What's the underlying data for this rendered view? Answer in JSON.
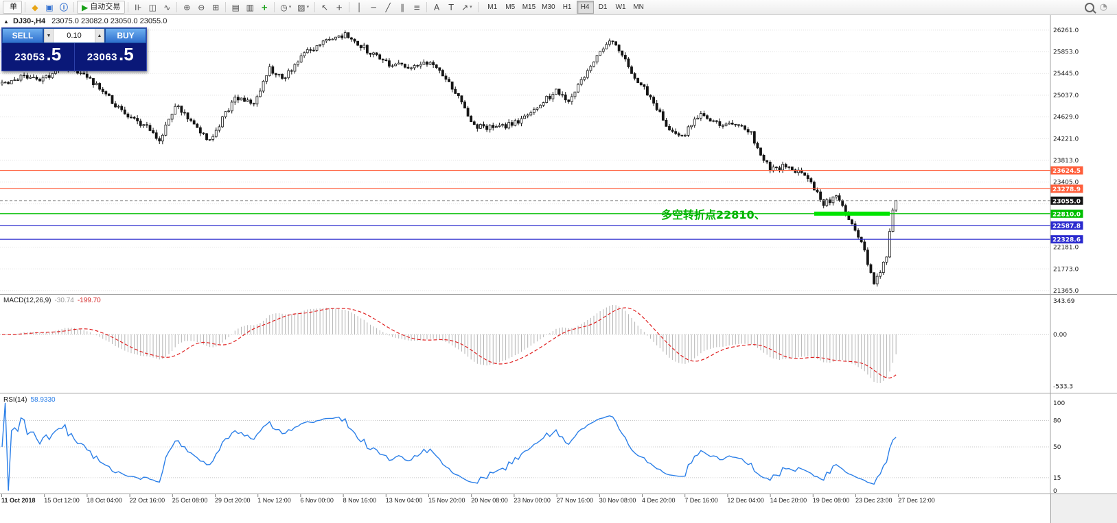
{
  "toolbar": {
    "items": [
      {
        "name": "new-order-button",
        "text": "单",
        "framed": true
      },
      {
        "name": "sep"
      },
      {
        "name": "mql5-community-icon",
        "glyph": "◆",
        "color": "#e8a516"
      },
      {
        "name": "data-window-icon",
        "glyph": "▣",
        "color": "#2f6fd0"
      },
      {
        "name": "help-icon",
        "glyph": "ⓘ",
        "color": "#2f6fd0"
      },
      {
        "name": "sep"
      },
      {
        "name": "auto-trading-button",
        "glyph": "▶",
        "color": "#18a018",
        "text": "自动交易",
        "framed": true
      },
      {
        "name": "sep"
      },
      {
        "name": "bar-chart-icon",
        "glyph": "⊪"
      },
      {
        "name": "candlestick-chart-icon",
        "glyph": "◫"
      },
      {
        "name": "line-chart-icon",
        "glyph": "∿"
      },
      {
        "name": "sep"
      },
      {
        "name": "zoom-in-icon",
        "glyph": "⊕"
      },
      {
        "name": "zoom-out-icon",
        "glyph": "⊖"
      },
      {
        "name": "tile-windows-icon",
        "glyph": "⊞"
      },
      {
        "name": "sep"
      },
      {
        "name": "navigator-icon",
        "glyph": "▤"
      },
      {
        "name": "terminal-icon",
        "glyph": "▥"
      },
      {
        "name": "add-indicator-icon",
        "glyph": "+",
        "color": "#18a018"
      },
      {
        "name": "sep"
      },
      {
        "name": "periods-icon",
        "glyph": "◷",
        "dropdown": true
      },
      {
        "name": "templates-icon",
        "glyph": "▨",
        "dropdown": true
      },
      {
        "name": "sep"
      },
      {
        "name": "cursor-icon",
        "glyph": "↖"
      },
      {
        "name": "crosshair-icon",
        "glyph": "+"
      },
      {
        "name": "sep"
      },
      {
        "name": "vertical-line-icon",
        "glyph": "│"
      },
      {
        "name": "horizontal-line-icon",
        "glyph": "─"
      },
      {
        "name": "trendline-icon",
        "glyph": "╱"
      },
      {
        "name": "channel-icon",
        "glyph": "∥"
      },
      {
        "name": "fibonacci-icon",
        "glyph": "≡"
      },
      {
        "name": "sep"
      },
      {
        "name": "text-icon",
        "glyph": "A"
      },
      {
        "name": "text-label-icon",
        "glyph": "T"
      },
      {
        "name": "arrows-icon",
        "glyph": "↗",
        "dropdown": true
      },
      {
        "name": "sep"
      }
    ],
    "timeframes": [
      "M1",
      "M5",
      "M15",
      "M30",
      "H1",
      "H4",
      "D1",
      "W1",
      "MN"
    ],
    "active_timeframe": "H4",
    "right_items": [
      {
        "name": "search-icon",
        "type": "mag"
      },
      {
        "name": "quick-help-icon",
        "glyph": "◔",
        "color": "#9a9a9a"
      }
    ]
  },
  "chart": {
    "shift_marker": "▲",
    "symbol_title": "DJ30-,H4",
    "ohlc": "23075.0 23082.0 23050.0 23055.0",
    "annotation": "多空转折点22810、"
  },
  "trade_panel": {
    "sell_label": "SELL",
    "buy_label": "BUY",
    "volume": "0.10",
    "spin_down": "▼",
    "spin_up": "▲",
    "sell_price_main": "23053",
    "sell_price_frac": ".5",
    "buy_price_main": "23063",
    "buy_price_frac": ".5"
  },
  "chart_data": {
    "type": "candlestick",
    "symbol": "DJ30-",
    "timeframe": "H4",
    "bars": 285,
    "last_close": 23055.0,
    "price_path_anchors": [
      [
        0,
        25250
      ],
      [
        6,
        25380
      ],
      [
        13,
        25350
      ],
      [
        20,
        25600
      ],
      [
        26,
        25450
      ],
      [
        38,
        24750
      ],
      [
        45,
        24480
      ],
      [
        50,
        24180
      ],
      [
        55,
        24850
      ],
      [
        61,
        24500
      ],
      [
        66,
        24180
      ],
      [
        74,
        25000
      ],
      [
        80,
        24880
      ],
      [
        85,
        25530
      ],
      [
        89,
        25330
      ],
      [
        96,
        25800
      ],
      [
        104,
        26120
      ],
      [
        110,
        26170
      ],
      [
        116,
        25880
      ],
      [
        124,
        25600
      ],
      [
        130,
        25570
      ],
      [
        137,
        25650
      ],
      [
        143,
        25180
      ],
      [
        150,
        24460
      ],
      [
        158,
        24420
      ],
      [
        165,
        24580
      ],
      [
        176,
        25120
      ],
      [
        180,
        24940
      ],
      [
        187,
        25600
      ],
      [
        192,
        26040
      ],
      [
        195,
        25980
      ],
      [
        200,
        25470
      ],
      [
        205,
        25070
      ],
      [
        211,
        24480
      ],
      [
        216,
        24260
      ],
      [
        222,
        24700
      ],
      [
        228,
        24460
      ],
      [
        234,
        24520
      ],
      [
        238,
        24300
      ],
      [
        244,
        23620
      ],
      [
        250,
        23720
      ],
      [
        256,
        23440
      ],
      [
        261,
        23000
      ],
      [
        265,
        23120
      ],
      [
        269,
        22700
      ],
      [
        273,
        22280
      ],
      [
        277,
        21480
      ],
      [
        279,
        21750
      ],
      [
        280,
        21900
      ],
      [
        281,
        22050
      ],
      [
        283,
        22880
      ],
      [
        284,
        23055
      ]
    ],
    "grid_levels": [
      26261.0,
      25853.0,
      25445.0,
      25037.0,
      24629.0,
      24221.0,
      23813.0,
      23405.0,
      22997.0,
      22589.0,
      22181.0,
      21773.0,
      21365.0
    ],
    "y_axis_visible": [
      26261.0,
      25853.0,
      25445.0,
      25037.0,
      24629.0,
      24221.0,
      23813.0,
      23405.0,
      22181.0,
      21773.0,
      21365.0
    ],
    "price_levels": [
      {
        "price": 23624.5,
        "label": "23624.5",
        "color": "#ff5f3c"
      },
      {
        "price": 23278.9,
        "label": "23278.9",
        "color": "#ff5f3c"
      },
      {
        "price": 23055.0,
        "label": "23055.0",
        "color": "#909090",
        "style": "current",
        "tag_color": "#141414"
      },
      {
        "price": 22810.0,
        "label": "22810.0",
        "color": "#00bf00",
        "segment": [
          258,
          282
        ],
        "segment_color": "#00e400"
      },
      {
        "price": 22587.8,
        "label": "22587.8",
        "color": "#2a2ace"
      },
      {
        "price": 22328.6,
        "label": "22328.6",
        "color": "#2a2ace"
      }
    ],
    "macd": {
      "label": "MACD(12,26,9)",
      "value1": "-30.74",
      "value2": "-199.70",
      "params": [
        12,
        26,
        9
      ],
      "axis": [
        {
          "v": 343.69,
          "label": "343.69"
        },
        {
          "v": 0,
          "label": "0.00"
        },
        {
          "v": -533.3,
          "label": "-533.3"
        }
      ]
    },
    "rsi": {
      "label": "RSI(14)",
      "value": "58.9330",
      "period": 14,
      "levels": [
        80,
        50,
        15
      ],
      "axis": [
        {
          "v": 100,
          "label": "100"
        },
        {
          "v": 80,
          "label": "80"
        },
        {
          "v": 50,
          "label": "50"
        },
        {
          "v": 15,
          "label": "15"
        },
        {
          "v": 0,
          "label": "0"
        }
      ]
    },
    "time_labels": [
      "11 Oct 2018",
      "15 Oct 12:00",
      "18 Oct 04:00",
      "22 Oct 16:00",
      "25 Oct 08:00",
      "29 Oct 20:00",
      "1 Nov 12:00",
      "6 Nov 00:00",
      "8 Nov 16:00",
      "13 Nov 04:00",
      "15 Nov 20:00",
      "20 Nov 08:00",
      "23 Nov 00:00",
      "27 Nov 16:00",
      "30 Nov 08:00",
      "4 Dec 20:00",
      "7 Dec 16:00",
      "12 Dec 04:00",
      "14 Dec 20:00",
      "19 Dec 08:00",
      "23 Dec 23:00",
      "27 Dec 12:00"
    ]
  }
}
